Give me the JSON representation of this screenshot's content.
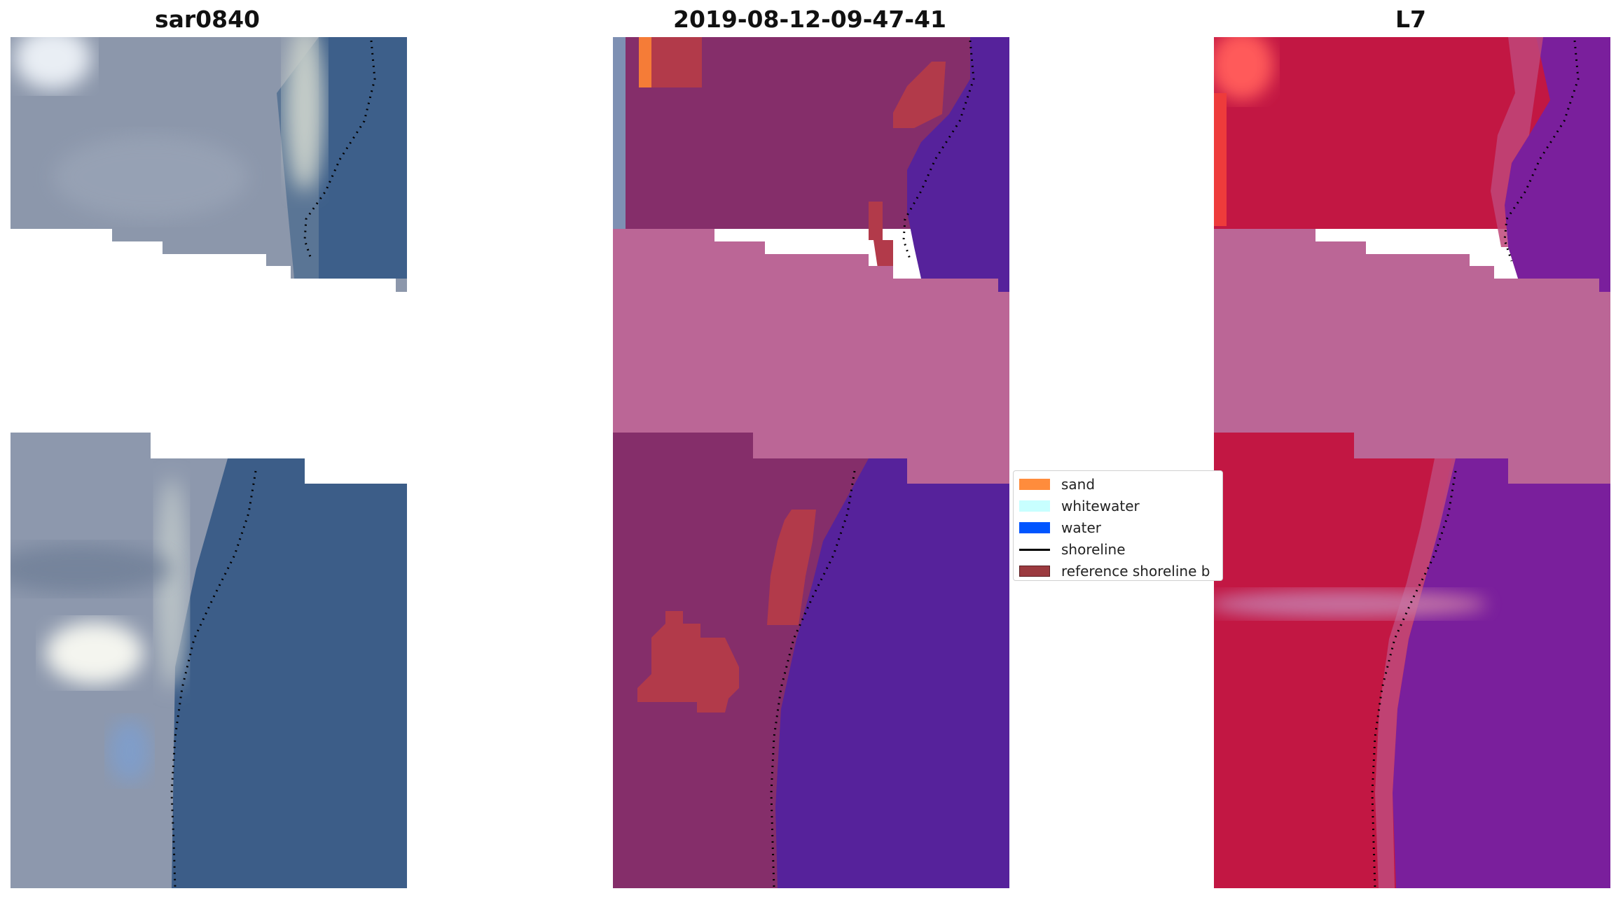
{
  "panels": [
    {
      "title": "sar0840"
    },
    {
      "title": "2019-08-12-09-47-41"
    },
    {
      "title": "L7"
    }
  ],
  "legend": {
    "items": [
      {
        "label": "sand",
        "color": "#ff8c3c",
        "kind": "patch"
      },
      {
        "label": "whitewater",
        "color": "#c8ffff",
        "kind": "patch"
      },
      {
        "label": "water",
        "color": "#0055ff",
        "kind": "patch"
      },
      {
        "label": "shoreline",
        "color": "#000000",
        "kind": "line"
      },
      {
        "label": "reference shoreline b",
        "color": "#9b3a3f",
        "kind": "patch"
      }
    ]
  }
}
